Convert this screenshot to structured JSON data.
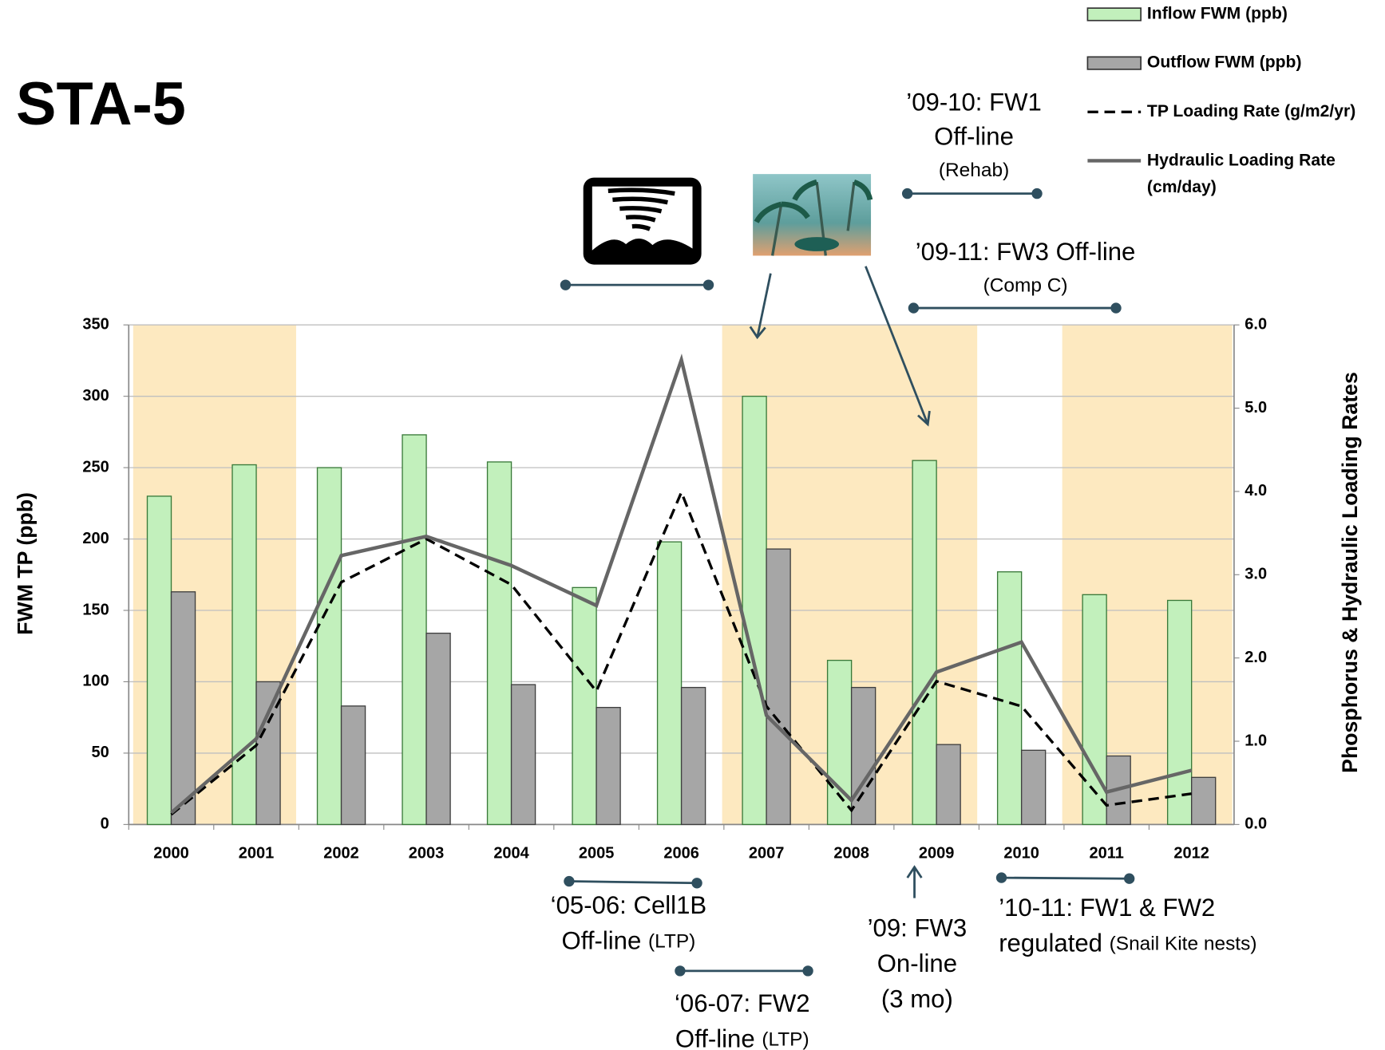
{
  "chart_data": {
    "type": "bar-line",
    "title": "STA-5",
    "ylabel": "FWM TP (ppb)",
    "y2label": "Phosphorus & Hydraulic Loading Rates",
    "categories": [
      "2000",
      "2001",
      "2002",
      "2003",
      "2004",
      "2005",
      "2006",
      "2007",
      "2008",
      "2009",
      "2010",
      "2011",
      "2012"
    ],
    "highlight_spans": [
      [
        "2000",
        "2001"
      ],
      [
        "2007",
        "2009"
      ],
      [
        "2011",
        "2012"
      ]
    ],
    "highlight_color": "#fde9c0",
    "ylim": [
      0,
      350
    ],
    "yticks": [
      0,
      50,
      100,
      150,
      200,
      250,
      300,
      350
    ],
    "y2lim": [
      0,
      6
    ],
    "y2ticks": [
      {
        "value": 0,
        "label": "0.0"
      },
      {
        "value": 1,
        "label": "1.0"
      },
      {
        "value": 2,
        "label": "2.0"
      },
      {
        "value": 3,
        "label": "3.0"
      },
      {
        "value": 4,
        "label": "4.0"
      },
      {
        "value": 5,
        "label": "5.0"
      },
      {
        "value": 6,
        "label": "6.0"
      }
    ],
    "grid": true,
    "legend": "top-right",
    "series": [
      {
        "name": "Inflow FWM (ppb)",
        "type": "bar",
        "color": "#c2f0bc",
        "values": [
          230,
          252,
          250,
          273,
          254,
          166,
          198,
          300,
          115,
          255,
          177,
          161,
          157
        ]
      },
      {
        "name": "Outflow FWM (ppb)",
        "type": "bar",
        "color": "#a6a6a6",
        "values": [
          163,
          100,
          83,
          134,
          98,
          82,
          96,
          193,
          96,
          56,
          52,
          48,
          33
        ]
      },
      {
        "name": "TP Loading Rate (g/m2/yr)",
        "type": "line",
        "dash": true,
        "axis": "y2",
        "color": "#000000",
        "values": [
          0.12,
          0.95,
          2.91,
          3.43,
          2.88,
          1.6,
          3.99,
          1.42,
          0.17,
          1.72,
          1.42,
          0.23,
          0.37
        ]
      },
      {
        "name": "Hydraulic Loading Rate (cm/day)",
        "type": "line",
        "dash": false,
        "axis": "y2",
        "color": "#666666",
        "values": [
          0.14,
          1.03,
          3.23,
          3.46,
          3.11,
          2.63,
          5.58,
          1.31,
          0.29,
          1.83,
          2.19,
          0.39,
          0.65
        ]
      }
    ],
    "annotations": [
      {
        "lines": [
          [
            "’09-10: FW1"
          ],
          [
            "Off-line"
          ],
          [
            "(Rehab)"
          ]
        ]
      },
      {
        "lines": [
          [
            "’09-11: FW3 Off-line"
          ],
          [
            "(Comp C)"
          ]
        ]
      },
      {
        "lines": [
          [
            "‘05-06: Cell1B"
          ],
          [
            "Off-line ",
            "(LTP)"
          ]
        ]
      },
      {
        "lines": [
          [
            "‘06-07: FW2"
          ],
          [
            "Off-line ",
            "(LTP)"
          ]
        ]
      },
      {
        "lines": [
          [
            "’09: FW3"
          ],
          [
            "On-line"
          ],
          [
            "(3 mo)"
          ]
        ]
      },
      {
        "lines": [
          [
            "’10-11: FW1 & FW2"
          ],
          [
            "regulated ",
            "(Snail Kite nests)"
          ]
        ]
      }
    ]
  }
}
